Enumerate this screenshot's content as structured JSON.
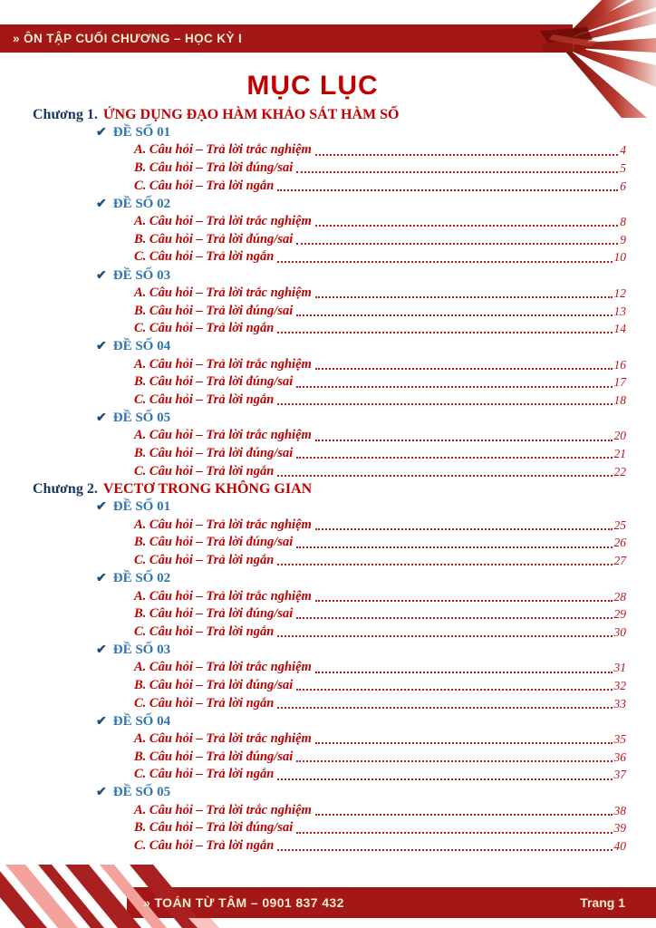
{
  "header": {
    "bar_text": "» ÔN TẬP CUỐI CHƯƠNG – HỌC KỲ I"
  },
  "title": "MỤC LỤC",
  "toc": {
    "chapters": [
      {
        "label": "Chương 1.",
        "title": "ỨNG DỤNG ĐẠO HÀM KHẢO SÁT HÀM SỐ",
        "exams": [
          {
            "check": "✔",
            "label": "ĐỀ SỐ 01",
            "items": [
              {
                "text": "A. Câu hỏi – Trả lời trắc nghiệm",
                "page": "4"
              },
              {
                "text": "B. Câu hỏi – Trả lời đúng/sai",
                "page": "5"
              },
              {
                "text": "C. Câu hỏi – Trả lời ngắn",
                "page": "6"
              }
            ]
          },
          {
            "check": "✔",
            "label": "ĐỀ SỐ 02",
            "items": [
              {
                "text": "A. Câu hỏi – Trả lời trắc nghiệm",
                "page": "8"
              },
              {
                "text": "B. Câu hỏi – Trả lời đúng/sai",
                "page": "9"
              },
              {
                "text": "C. Câu hỏi – Trả lời ngắn",
                "page": "10"
              }
            ]
          },
          {
            "check": "✔",
            "label": "ĐỀ SỐ 03",
            "items": [
              {
                "text": "A. Câu hỏi – Trả lời trắc nghiệm",
                "page": "12"
              },
              {
                "text": "B. Câu hỏi – Trả lời đúng/sai",
                "page": "13"
              },
              {
                "text": "C. Câu hỏi – Trả lời ngắn",
                "page": "14"
              }
            ]
          },
          {
            "check": "✔",
            "label": "ĐỀ SỐ 04",
            "items": [
              {
                "text": "A. Câu hỏi – Trả lời trắc nghiệm",
                "page": "16"
              },
              {
                "text": "B. Câu hỏi – Trả lời đúng/sai",
                "page": "17"
              },
              {
                "text": "C. Câu hỏi – Trả lời ngắn",
                "page": "18"
              }
            ]
          },
          {
            "check": "✔",
            "label": "ĐỀ SỐ 05",
            "items": [
              {
                "text": "A. Câu hỏi – Trả lời trắc nghiệm",
                "page": "20"
              },
              {
                "text": "B. Câu hỏi – Trả lời đúng/sai",
                "page": "21"
              },
              {
                "text": "C. Câu hỏi – Trả lời ngắn",
                "page": "22"
              }
            ]
          }
        ]
      },
      {
        "label": "Chương 2.",
        "title": "VECTƠ TRONG KHÔNG GIAN",
        "exams": [
          {
            "check": "✔",
            "label": "ĐỀ SỐ 01",
            "items": [
              {
                "text": "A. Câu hỏi – Trả lời trắc nghiệm",
                "page": "25"
              },
              {
                "text": "B. Câu hỏi – Trả lời đúng/sai",
                "page": "26"
              },
              {
                "text": "C. Câu hỏi – Trả lời ngắn",
                "page": "27"
              }
            ]
          },
          {
            "check": "✔",
            "label": "ĐỀ SỐ 02",
            "items": [
              {
                "text": "A. Câu hỏi – Trả lời trắc nghiệm",
                "page": "28"
              },
              {
                "text": "B. Câu hỏi – Trả lời đúng/sai",
                "page": "29"
              },
              {
                "text": "C. Câu hỏi – Trả lời ngắn",
                "page": "30"
              }
            ]
          },
          {
            "check": "✔",
            "label": "ĐỀ SỐ 03",
            "items": [
              {
                "text": "A. Câu hỏi – Trả lời trắc nghiệm",
                "page": "31"
              },
              {
                "text": "B. Câu hỏi – Trả lời đúng/sai",
                "page": "32"
              },
              {
                "text": "C. Câu hỏi – Trả lời ngắn",
                "page": "33"
              }
            ]
          },
          {
            "check": "✔",
            "label": "ĐỀ SỐ 04",
            "items": [
              {
                "text": "A. Câu hỏi – Trả lời trắc nghiệm",
                "page": "35"
              },
              {
                "text": "B. Câu hỏi – Trả lời đúng/sai",
                "page": "36"
              },
              {
                "text": "C. Câu hỏi – Trả lời ngắn",
                "page": "37"
              }
            ]
          },
          {
            "check": "✔",
            "label": "ĐỀ SỐ 05",
            "items": [
              {
                "text": "A. Câu hỏi – Trả lời trắc nghiệm",
                "page": "38"
              },
              {
                "text": "B. Câu hỏi – Trả lời đúng/sai",
                "page": "39"
              },
              {
                "text": "C. Câu hỏi – Trả lời ngắn",
                "page": "40"
              }
            ]
          }
        ]
      }
    ]
  },
  "footer": {
    "brand": "» TOÁN TỪ TÂM – 0901 837 432",
    "page_label": "Trang 1"
  },
  "colors": {
    "bar_red": "#A31717",
    "accent_red": "#C00000",
    "navy": "#17375E",
    "exam_blue": "#2E74B5",
    "check_blue": "#1F4E79",
    "cream_text": "#F6EDCF",
    "stripe_pink": "#F2A29A"
  }
}
